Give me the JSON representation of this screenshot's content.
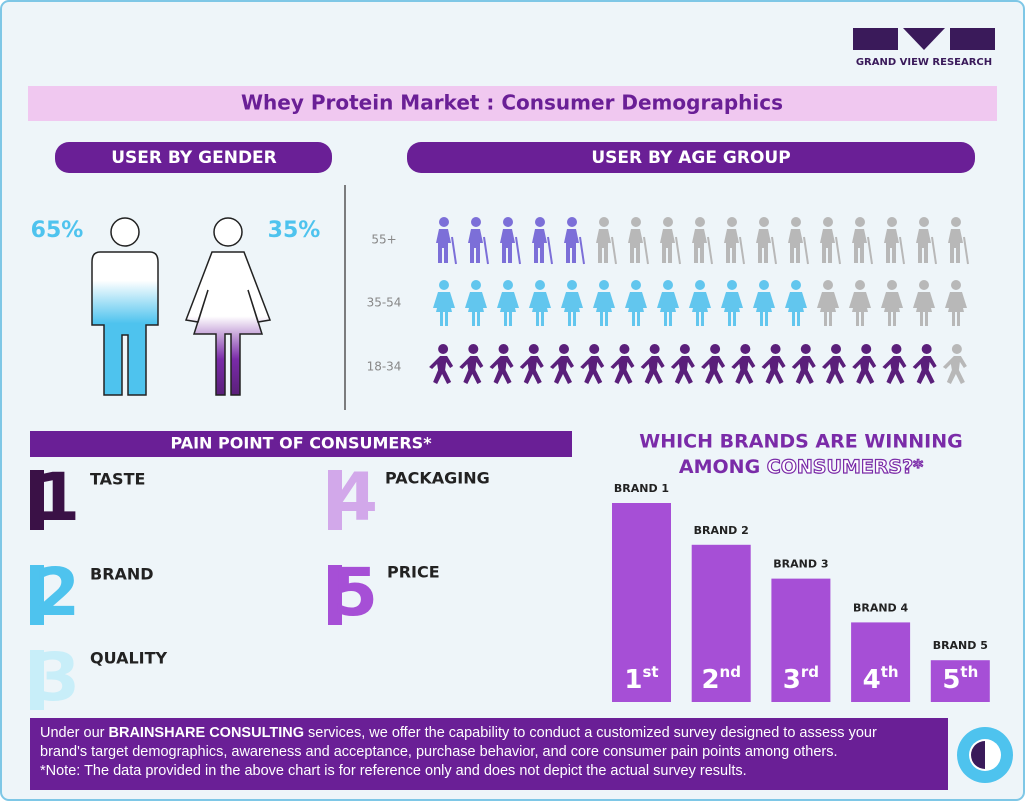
{
  "logo": {
    "text": "GRAND VIEW RESEARCH"
  },
  "header": {
    "title": "Whey Protein Market : Consumer Demographics"
  },
  "gender": {
    "title": "USER BY GENDER",
    "male": "65%",
    "female": "35%"
  },
  "age": {
    "title": "USER BY AGE GROUP",
    "groups": [
      {
        "label": "55+",
        "highlighted": 5,
        "total": 17
      },
      {
        "label": "35-54",
        "highlighted": 12,
        "total": 17
      },
      {
        "label": "18-34",
        "highlighted": 17,
        "total": 18
      }
    ]
  },
  "pain_points": {
    "title": "PAIN POINT OF CONSUMERS*",
    "items": [
      {
        "rank": "1",
        "label": "TASTE"
      },
      {
        "rank": "2",
        "label": "BRAND"
      },
      {
        "rank": "3",
        "label": "QUALITY"
      },
      {
        "rank": "4",
        "label": "PACKAGING"
      },
      {
        "rank": "5",
        "label": "PRICE"
      }
    ]
  },
  "brands": {
    "title": [
      "WHICH BRANDS ARE WINNING",
      "AMONG",
      "CONSUMERS?*"
    ],
    "categories": [
      "BRAND 1",
      "BRAND 2",
      "BRAND 3",
      "BRAND 4",
      "BRAND 5"
    ],
    "values": [
      100,
      79,
      62,
      40,
      21
    ],
    "ranks": [
      "1",
      "2",
      "3",
      "4",
      "5"
    ],
    "suffixes": [
      "st",
      "nd",
      "rd",
      "th",
      "th"
    ]
  },
  "footer": {
    "intro": "Under our",
    "highlight": "BRAINSHARE CONSULTING",
    "text": "services, we offer the capability to conduct a customized survey designed to assess your brand's target demographics, awareness and acceptance, purchase behavior, and core consumer pain points among others.",
    "note": "*Note: The data provided in the above chart is for reference only and does not depict the actual survey results."
  }
}
